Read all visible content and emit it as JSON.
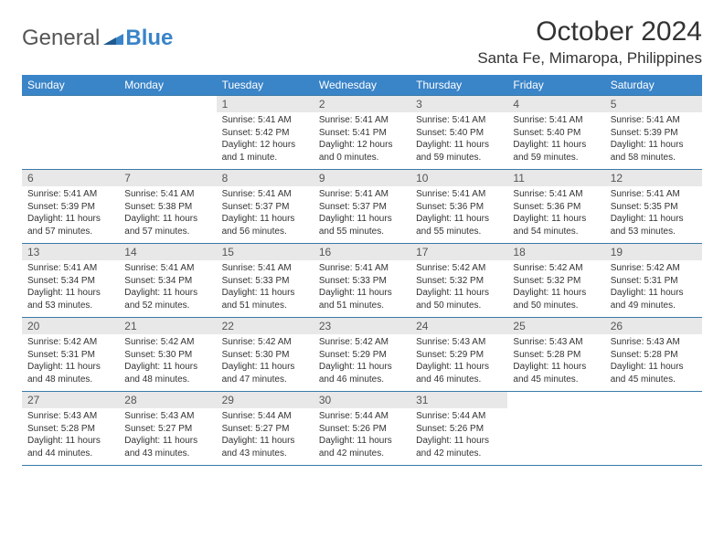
{
  "logo": {
    "text1": "General",
    "text2": "Blue"
  },
  "title": "October 2024",
  "location": "Santa Fe, Mimaropa, Philippines",
  "colors": {
    "header_bg": "#3a84c8",
    "header_fg": "#ffffff",
    "daynum_bg": "#e8e8e8",
    "daynum_fg": "#555555",
    "border": "#3a7aa8",
    "text": "#333333",
    "logo_gray": "#555555",
    "logo_blue": "#3a84c8",
    "page_bg": "#ffffff"
  },
  "typography": {
    "title_fontsize": 30,
    "location_fontsize": 17,
    "header_fontsize": 12,
    "daynum_fontsize": 12,
    "daytext_fontsize": 10,
    "logo_fontsize": 24
  },
  "day_headers": [
    "Sunday",
    "Monday",
    "Tuesday",
    "Wednesday",
    "Thursday",
    "Friday",
    "Saturday"
  ],
  "weeks": [
    [
      {
        "n": "",
        "sr": "",
        "ss": "",
        "dl": ""
      },
      {
        "n": "",
        "sr": "",
        "ss": "",
        "dl": ""
      },
      {
        "n": "1",
        "sr": "Sunrise: 5:41 AM",
        "ss": "Sunset: 5:42 PM",
        "dl": "Daylight: 12 hours and 1 minute."
      },
      {
        "n": "2",
        "sr": "Sunrise: 5:41 AM",
        "ss": "Sunset: 5:41 PM",
        "dl": "Daylight: 12 hours and 0 minutes."
      },
      {
        "n": "3",
        "sr": "Sunrise: 5:41 AM",
        "ss": "Sunset: 5:40 PM",
        "dl": "Daylight: 11 hours and 59 minutes."
      },
      {
        "n": "4",
        "sr": "Sunrise: 5:41 AM",
        "ss": "Sunset: 5:40 PM",
        "dl": "Daylight: 11 hours and 59 minutes."
      },
      {
        "n": "5",
        "sr": "Sunrise: 5:41 AM",
        "ss": "Sunset: 5:39 PM",
        "dl": "Daylight: 11 hours and 58 minutes."
      }
    ],
    [
      {
        "n": "6",
        "sr": "Sunrise: 5:41 AM",
        "ss": "Sunset: 5:39 PM",
        "dl": "Daylight: 11 hours and 57 minutes."
      },
      {
        "n": "7",
        "sr": "Sunrise: 5:41 AM",
        "ss": "Sunset: 5:38 PM",
        "dl": "Daylight: 11 hours and 57 minutes."
      },
      {
        "n": "8",
        "sr": "Sunrise: 5:41 AM",
        "ss": "Sunset: 5:37 PM",
        "dl": "Daylight: 11 hours and 56 minutes."
      },
      {
        "n": "9",
        "sr": "Sunrise: 5:41 AM",
        "ss": "Sunset: 5:37 PM",
        "dl": "Daylight: 11 hours and 55 minutes."
      },
      {
        "n": "10",
        "sr": "Sunrise: 5:41 AM",
        "ss": "Sunset: 5:36 PM",
        "dl": "Daylight: 11 hours and 55 minutes."
      },
      {
        "n": "11",
        "sr": "Sunrise: 5:41 AM",
        "ss": "Sunset: 5:36 PM",
        "dl": "Daylight: 11 hours and 54 minutes."
      },
      {
        "n": "12",
        "sr": "Sunrise: 5:41 AM",
        "ss": "Sunset: 5:35 PM",
        "dl": "Daylight: 11 hours and 53 minutes."
      }
    ],
    [
      {
        "n": "13",
        "sr": "Sunrise: 5:41 AM",
        "ss": "Sunset: 5:34 PM",
        "dl": "Daylight: 11 hours and 53 minutes."
      },
      {
        "n": "14",
        "sr": "Sunrise: 5:41 AM",
        "ss": "Sunset: 5:34 PM",
        "dl": "Daylight: 11 hours and 52 minutes."
      },
      {
        "n": "15",
        "sr": "Sunrise: 5:41 AM",
        "ss": "Sunset: 5:33 PM",
        "dl": "Daylight: 11 hours and 51 minutes."
      },
      {
        "n": "16",
        "sr": "Sunrise: 5:41 AM",
        "ss": "Sunset: 5:33 PM",
        "dl": "Daylight: 11 hours and 51 minutes."
      },
      {
        "n": "17",
        "sr": "Sunrise: 5:42 AM",
        "ss": "Sunset: 5:32 PM",
        "dl": "Daylight: 11 hours and 50 minutes."
      },
      {
        "n": "18",
        "sr": "Sunrise: 5:42 AM",
        "ss": "Sunset: 5:32 PM",
        "dl": "Daylight: 11 hours and 50 minutes."
      },
      {
        "n": "19",
        "sr": "Sunrise: 5:42 AM",
        "ss": "Sunset: 5:31 PM",
        "dl": "Daylight: 11 hours and 49 minutes."
      }
    ],
    [
      {
        "n": "20",
        "sr": "Sunrise: 5:42 AM",
        "ss": "Sunset: 5:31 PM",
        "dl": "Daylight: 11 hours and 48 minutes."
      },
      {
        "n": "21",
        "sr": "Sunrise: 5:42 AM",
        "ss": "Sunset: 5:30 PM",
        "dl": "Daylight: 11 hours and 48 minutes."
      },
      {
        "n": "22",
        "sr": "Sunrise: 5:42 AM",
        "ss": "Sunset: 5:30 PM",
        "dl": "Daylight: 11 hours and 47 minutes."
      },
      {
        "n": "23",
        "sr": "Sunrise: 5:42 AM",
        "ss": "Sunset: 5:29 PM",
        "dl": "Daylight: 11 hours and 46 minutes."
      },
      {
        "n": "24",
        "sr": "Sunrise: 5:43 AM",
        "ss": "Sunset: 5:29 PM",
        "dl": "Daylight: 11 hours and 46 minutes."
      },
      {
        "n": "25",
        "sr": "Sunrise: 5:43 AM",
        "ss": "Sunset: 5:28 PM",
        "dl": "Daylight: 11 hours and 45 minutes."
      },
      {
        "n": "26",
        "sr": "Sunrise: 5:43 AM",
        "ss": "Sunset: 5:28 PM",
        "dl": "Daylight: 11 hours and 45 minutes."
      }
    ],
    [
      {
        "n": "27",
        "sr": "Sunrise: 5:43 AM",
        "ss": "Sunset: 5:28 PM",
        "dl": "Daylight: 11 hours and 44 minutes."
      },
      {
        "n": "28",
        "sr": "Sunrise: 5:43 AM",
        "ss": "Sunset: 5:27 PM",
        "dl": "Daylight: 11 hours and 43 minutes."
      },
      {
        "n": "29",
        "sr": "Sunrise: 5:44 AM",
        "ss": "Sunset: 5:27 PM",
        "dl": "Daylight: 11 hours and 43 minutes."
      },
      {
        "n": "30",
        "sr": "Sunrise: 5:44 AM",
        "ss": "Sunset: 5:26 PM",
        "dl": "Daylight: 11 hours and 42 minutes."
      },
      {
        "n": "31",
        "sr": "Sunrise: 5:44 AM",
        "ss": "Sunset: 5:26 PM",
        "dl": "Daylight: 11 hours and 42 minutes."
      },
      {
        "n": "",
        "sr": "",
        "ss": "",
        "dl": ""
      },
      {
        "n": "",
        "sr": "",
        "ss": "",
        "dl": ""
      }
    ]
  ]
}
